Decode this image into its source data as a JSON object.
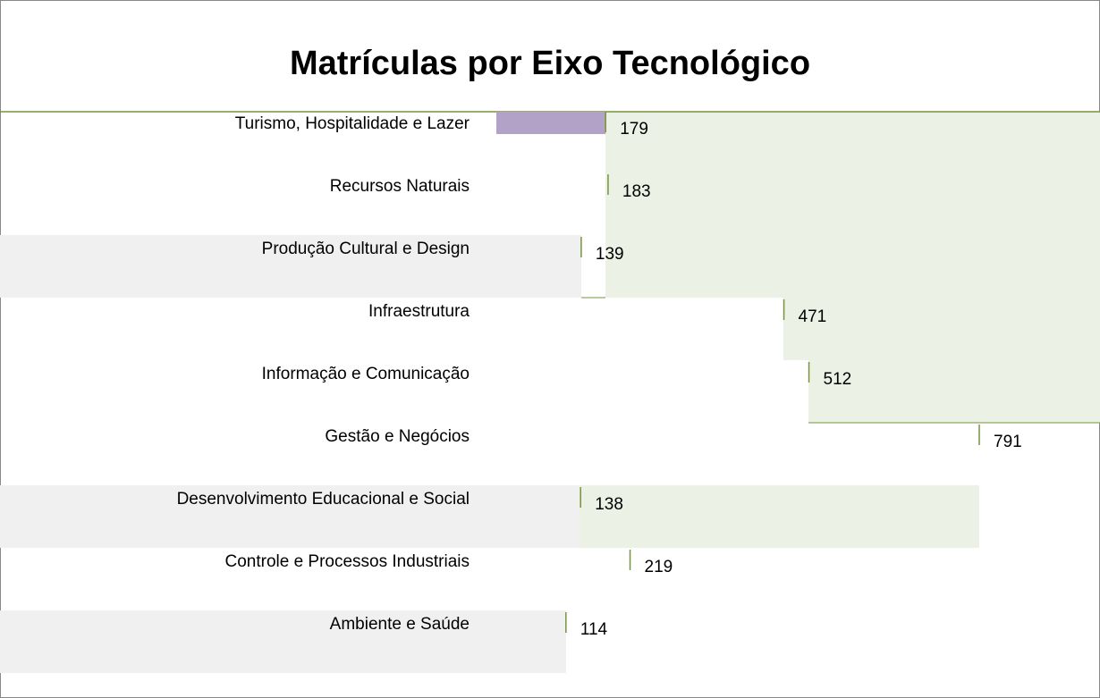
{
  "chart_data": {
    "type": "bar",
    "title": "Matrículas por Eixo Tecnológico",
    "categories": [
      "Turismo, Hospitalidade e Lazer",
      "Recursos Naturais",
      "Produção Cultural e Design",
      "Infraestrutura",
      "Informação e Comunicação",
      "Gestão e Negócios",
      "Desenvolvimento Educacional e Social",
      "Controle e Processos Industriais",
      "Ambiente e Saúde"
    ],
    "values": [
      179,
      183,
      139,
      471,
      512,
      791,
      138,
      219,
      114
    ],
    "color": "#77933c",
    "highlight_color": "#b3a2c7"
  }
}
